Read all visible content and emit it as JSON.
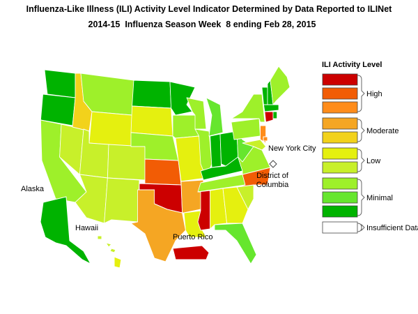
{
  "title": [
    "Influenza-Like Illness (ILI) Activity Level Indicator Determined by Data Reported to ILINet",
    "2014-15  Influenza Season Week  8 ending Feb 28, 2015"
  ],
  "legend": {
    "title": "ILI Activity Level",
    "groups": [
      {
        "label": "High",
        "colors": [
          "#cc0000",
          "#f25c05",
          "#ff8c1a"
        ]
      },
      {
        "label": "Moderate",
        "colors": [
          "#f5a623",
          "#f2d21b"
        ]
      },
      {
        "label": "Low",
        "colors": [
          "#e5f00f",
          "#c8f02a"
        ]
      },
      {
        "label": "Minimal",
        "colors": [
          "#9ef02a",
          "#66e62e",
          "#00b300"
        ]
      },
      {
        "label": "Insufficient Data",
        "colors": [
          "#ffffff"
        ]
      }
    ]
  },
  "map_labels": {
    "alaska": "Alaska",
    "hawaii": "Hawaii",
    "puerto_rico": "Puerto Rico",
    "new_york_city": "New York City",
    "district_of_columbia": [
      "District of",
      "Columbia"
    ]
  }
}
